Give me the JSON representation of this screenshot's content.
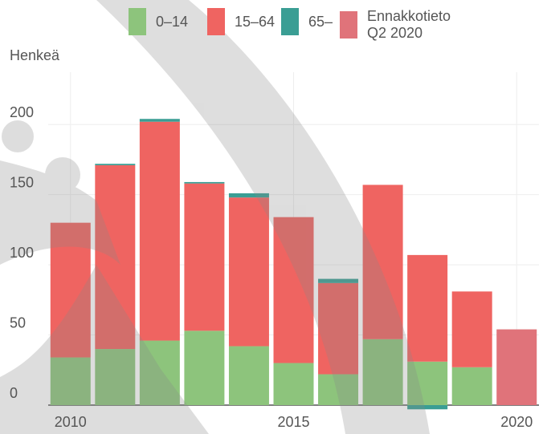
{
  "chart_data": {
    "type": "bar",
    "stacked": true,
    "y_label": "Henkeä",
    "x": [
      2010,
      2011,
      2012,
      2013,
      2014,
      2015,
      2016,
      2017,
      2018,
      2019,
      2020
    ],
    "series": [
      {
        "name": "0–14",
        "color": "#8dc47c",
        "values": [
          34,
          40,
          46,
          53,
          42,
          30,
          22,
          47,
          31,
          27,
          null
        ]
      },
      {
        "name": "15–64",
        "color": "#ef6461",
        "values": [
          96,
          131,
          156,
          105,
          106,
          104,
          65,
          110,
          76,
          54,
          null
        ]
      },
      {
        "name": "65–",
        "color": "#3a9e94",
        "values": [
          0,
          1,
          2,
          1,
          3,
          0,
          3,
          0,
          -3,
          0,
          null
        ]
      },
      {
        "name": "Ennakkotieto\nQ2 2020",
        "color": "#e0737a",
        "values": [
          null,
          null,
          null,
          null,
          null,
          null,
          null,
          null,
          null,
          null,
          54
        ]
      }
    ],
    "xlim": [
      2009.5,
      2020.5
    ],
    "xticks": [
      2010,
      2015,
      2020
    ],
    "ylim": [
      0,
      215
    ],
    "yticks": [
      0,
      50,
      100,
      150,
      200
    ],
    "grid": true
  }
}
